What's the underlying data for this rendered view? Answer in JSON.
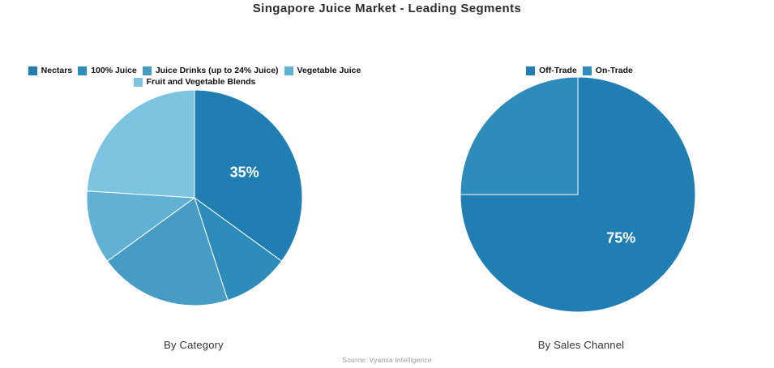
{
  "page": {
    "title": "Singapore Juice Market - Leading Segments",
    "source": "Source: Vyansa Intelligence",
    "background": "#ffffff",
    "slice_divider_color": "#ffffff",
    "label_text_color": "#ffffff"
  },
  "chart_data": [
    {
      "type": "pie",
      "title": "By Category",
      "legend_position": "top",
      "start_angle": "12 o'clock, clockwise",
      "segments": [
        {
          "label": "Nectars",
          "value": 35,
          "color": "#207eb2",
          "data_label": "35%"
        },
        {
          "label": "100% Juice",
          "value": 10,
          "color": "#2e8cba",
          "data_label": ""
        },
        {
          "label": "Juice Drinks (up to 24% Juice)",
          "value": 20,
          "color": "#469cc5",
          "data_label": ""
        },
        {
          "label": "Vegetable Juice",
          "value": 11,
          "color": "#60b1d3",
          "data_label": ""
        },
        {
          "label": "Fruit and Vegetable Blends",
          "value": 24,
          "color": "#7dc4e1",
          "data_label": ""
        }
      ]
    },
    {
      "type": "pie",
      "title": "By Sales Channel",
      "legend_position": "top",
      "start_angle": "12 o'clock, clockwise",
      "segments": [
        {
          "label": "Off-Trade",
          "value": 75,
          "color": "#207eb2",
          "data_label": "75%"
        },
        {
          "label": "On-Trade",
          "value": 25,
          "color": "#2e8cba",
          "data_label": ""
        }
      ]
    }
  ]
}
